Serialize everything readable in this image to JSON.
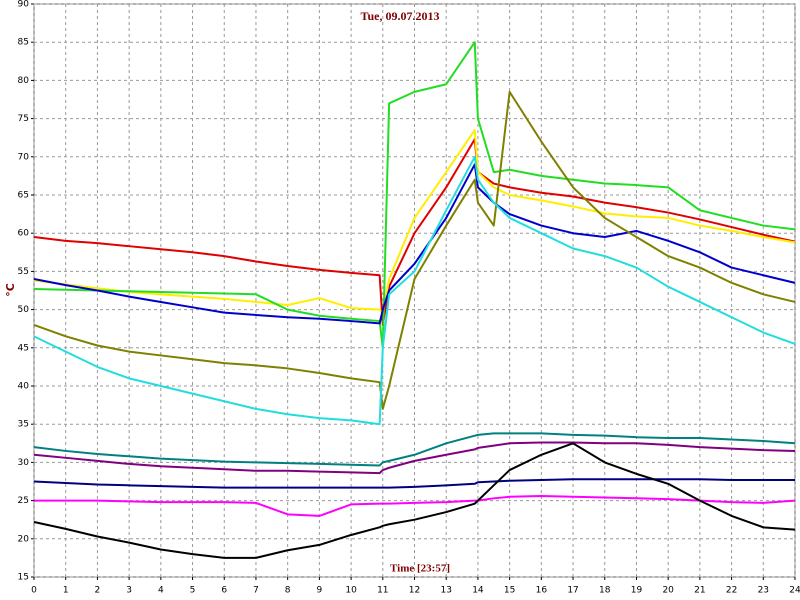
{
  "chart_data": {
    "type": "line",
    "title": "Tue, 09.07.2013",
    "x_label": "Time [23:57]",
    "y_label": "°C",
    "x": [
      0,
      1,
      2,
      3,
      4,
      5,
      6,
      7,
      8,
      9,
      10,
      10.9,
      11,
      11.2,
      12,
      13,
      13.9,
      14,
      14.5,
      15,
      16,
      17,
      18,
      19,
      20,
      21,
      22,
      23,
      24
    ],
    "xlim": [
      0,
      24
    ],
    "xticks": [
      0,
      1,
      2,
      3,
      4,
      5,
      6,
      7,
      8,
      9,
      10,
      11,
      12,
      13,
      14,
      15,
      16,
      17,
      18,
      19,
      20,
      21,
      22,
      23,
      24
    ],
    "ylim": [
      15,
      90
    ],
    "yticks": [
      15,
      20,
      25,
      30,
      35,
      40,
      45,
      50,
      55,
      60,
      65,
      70,
      75,
      80,
      85,
      90
    ],
    "grid": true,
    "series": [
      {
        "color": "#e00000",
        "values": [
          59.5,
          59,
          58.7,
          58.3,
          57.9,
          57.5,
          57,
          56.3,
          55.7,
          55.2,
          54.8,
          54.5,
          48,
          53,
          60,
          66,
          72.3,
          68,
          66.5,
          66,
          65.3,
          64.8,
          64,
          63.4,
          62.7,
          61.8,
          60.8,
          59.8,
          58.9
        ]
      },
      {
        "color": "#ffee00",
        "values": [
          53.8,
          53.3,
          52.8,
          52.3,
          52,
          51.7,
          51.4,
          51,
          50.6,
          51.5,
          50.2,
          50,
          49.5,
          54,
          62,
          68,
          73.5,
          68,
          66,
          65,
          64.3,
          63.5,
          62.6,
          62.2,
          62,
          61,
          60.3,
          59.5,
          58.8
        ]
      },
      {
        "color": "#22dd22",
        "values": [
          52.7,
          52.6,
          52.5,
          52.4,
          52.3,
          52.2,
          52.1,
          52,
          50,
          49.2,
          48.8,
          48.5,
          45,
          77,
          78.5,
          79.5,
          85,
          75,
          68,
          68.3,
          67.5,
          67,
          66.5,
          66.3,
          66,
          63,
          62,
          61,
          60.5
        ]
      },
      {
        "color": "#0000cc",
        "values": [
          54,
          53.2,
          52.5,
          51.7,
          51,
          50.3,
          49.6,
          49.3,
          49,
          48.8,
          48.5,
          48.2,
          50,
          52.5,
          56,
          62,
          69,
          66,
          64,
          62.5,
          61,
          60,
          59.5,
          60.3,
          59,
          57.5,
          55.5,
          54.5,
          53.5
        ]
      },
      {
        "color": "#808000",
        "values": [
          48,
          46.5,
          45.3,
          44.5,
          44,
          43.5,
          43,
          42.7,
          42.3,
          41.7,
          41,
          40.5,
          37,
          40,
          54,
          61,
          67,
          64,
          61,
          78.5,
          72,
          66,
          62,
          59.5,
          57,
          55.5,
          53.5,
          52,
          51
        ]
      },
      {
        "color": "#22dddd",
        "values": [
          46.5,
          44.5,
          42.5,
          41,
          40,
          39,
          38,
          37,
          36.3,
          35.8,
          35.5,
          35,
          45,
          52,
          55,
          63,
          70,
          67,
          64,
          62,
          60,
          58,
          57,
          55.5,
          53,
          51,
          49,
          47,
          45.5
        ]
      },
      {
        "color": "#008080",
        "values": [
          32,
          31.5,
          31.1,
          30.8,
          30.5,
          30.3,
          30.1,
          30,
          29.9,
          29.8,
          29.7,
          29.6,
          30,
          30.2,
          31,
          32.5,
          33.5,
          33.6,
          33.8,
          33.8,
          33.8,
          33.6,
          33.5,
          33.3,
          33.2,
          33.2,
          33,
          32.8,
          32.5
        ]
      },
      {
        "color": "#800080",
        "values": [
          31,
          30.6,
          30.2,
          29.8,
          29.5,
          29.3,
          29.1,
          28.9,
          28.9,
          28.8,
          28.7,
          28.6,
          29,
          29.3,
          30.2,
          31,
          31.7,
          31.9,
          32.2,
          32.5,
          32.6,
          32.6,
          32.5,
          32.5,
          32.3,
          32,
          31.8,
          31.6,
          31.5
        ]
      },
      {
        "color": "#000080",
        "values": [
          27.5,
          27.3,
          27.1,
          27,
          26.9,
          26.8,
          26.7,
          26.7,
          26.7,
          26.7,
          26.7,
          26.7,
          26.7,
          26.7,
          26.8,
          27,
          27.2,
          27.4,
          27.5,
          27.6,
          27.7,
          27.8,
          27.8,
          27.8,
          27.8,
          27.8,
          27.7,
          27.7,
          27.7
        ]
      },
      {
        "color": "#ff00ff",
        "values": [
          25,
          25,
          25,
          24.9,
          24.8,
          24.8,
          24.8,
          24.7,
          23.2,
          23,
          24.5,
          24.6,
          24.6,
          24.6,
          24.7,
          24.8,
          25,
          25,
          25.3,
          25.5,
          25.6,
          25.5,
          25.4,
          25.3,
          25.2,
          25,
          24.8,
          24.7,
          25
        ]
      },
      {
        "color": "#000000",
        "values": [
          22.2,
          21.3,
          20.3,
          19.5,
          18.6,
          18,
          17.5,
          17.5,
          18.5,
          19.2,
          20.5,
          21.5,
          21.7,
          21.9,
          22.5,
          23.5,
          24.6,
          25,
          27,
          29,
          31,
          32.5,
          30,
          28.5,
          27.2,
          25,
          23,
          21.5,
          21.2
        ]
      }
    ]
  }
}
